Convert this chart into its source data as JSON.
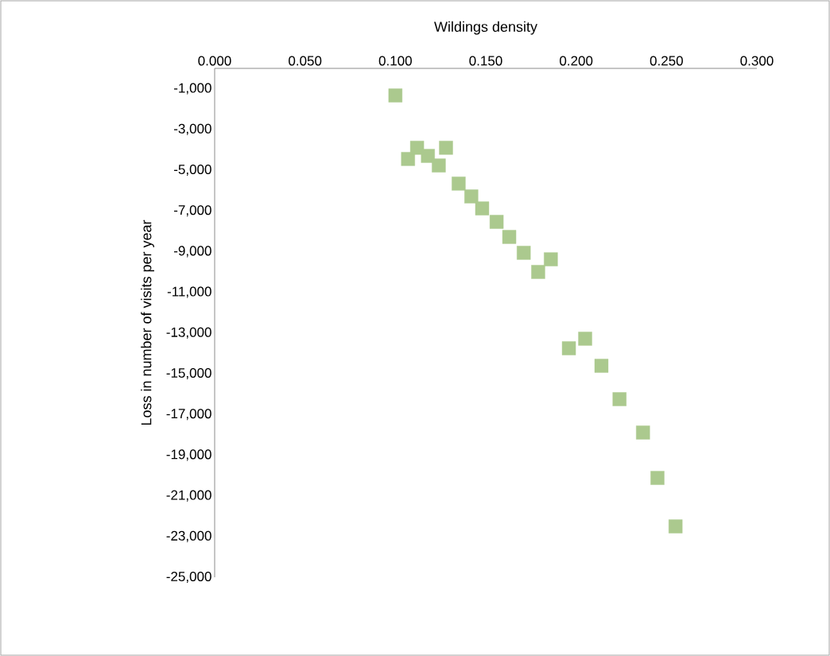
{
  "chart_data": {
    "type": "scatter",
    "xlabel": "Wildings density",
    "ylabel": "Loss in number of  visits per year",
    "x": [
      0.1,
      0.107,
      0.112,
      0.118,
      0.124,
      0.128,
      0.135,
      0.142,
      0.148,
      0.156,
      0.163,
      0.171,
      0.179,
      0.186,
      0.196,
      0.205,
      0.214,
      0.224,
      0.237,
      0.245,
      0.255
    ],
    "values": [
      -1330,
      -4450,
      -3900,
      -4300,
      -4770,
      -3900,
      -5660,
      -6290,
      -6880,
      -7540,
      -8280,
      -9060,
      -10000,
      -9380,
      -13750,
      -13280,
      -14610,
      -16250,
      -17890,
      -20120,
      -22500
    ],
    "color": "#abc98e",
    "marker": "square",
    "grid": false,
    "xlim": [
      0,
      0.3
    ],
    "ylim": [
      -25000,
      0
    ],
    "xticks": [
      {
        "value": 0,
        "label": "0.000"
      },
      {
        "value": 0.05,
        "label": "0.050"
      },
      {
        "value": 0.1,
        "label": "0.100"
      },
      {
        "value": 0.15,
        "label": "0.150"
      },
      {
        "value": 0.2,
        "label": "0.200"
      },
      {
        "value": 0.25,
        "label": "0.250"
      },
      {
        "value": 0.3,
        "label": "0.300"
      }
    ],
    "yticks": [
      {
        "value": -25000,
        "label": "-25,000"
      },
      {
        "value": -23000,
        "label": "-23,000"
      },
      {
        "value": -21000,
        "label": "-21,000"
      },
      {
        "value": -19000,
        "label": "-19,000"
      },
      {
        "value": -17000,
        "label": "-17,000"
      },
      {
        "value": -15000,
        "label": "-15,000"
      },
      {
        "value": -13000,
        "label": "-13,000"
      },
      {
        "value": -11000,
        "label": "-11,000"
      },
      {
        "value": -9000,
        "label": "-9,000"
      },
      {
        "value": -7000,
        "label": "-7,000"
      },
      {
        "value": -5000,
        "label": "-5,000"
      },
      {
        "value": -3000,
        "label": "-3,000"
      },
      {
        "value": -1000,
        "label": "-1,000"
      }
    ]
  }
}
